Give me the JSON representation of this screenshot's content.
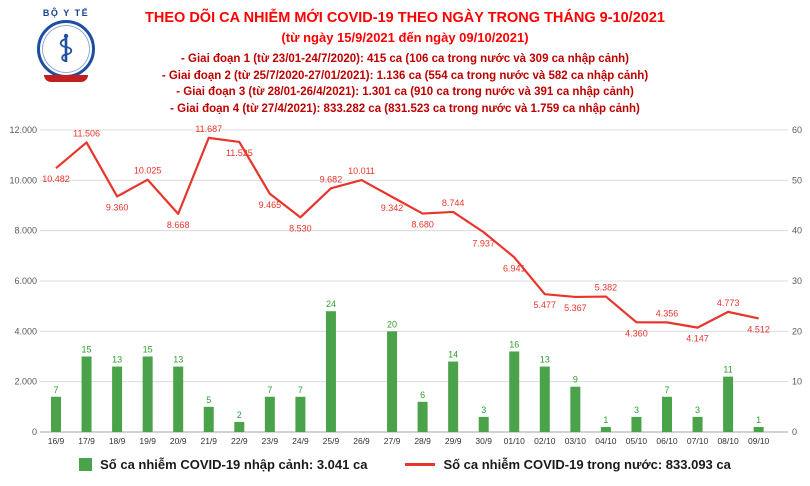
{
  "header": {
    "logo": {
      "org": "BỘ Y TẾ"
    }
  },
  "colors": {
    "title": "#ff0000",
    "annotation": "#c00000",
    "bar": "#4aa34a",
    "bar_label": "#2f9e2f",
    "line": "#e8352b",
    "line_label": "#e8352b",
    "axis_text": "#595959",
    "date_text": "#333333",
    "grid": "#dcdcdc",
    "baseline": "#a6a6a6",
    "logo_blue": "#1d4ea0"
  },
  "chart_data": {
    "type": "combo-bar-line",
    "title": "THEO DÕI CA NHIỄM MỚI COVID-19 THEO NGÀY TRONG THÁNG 9-10/2021",
    "subtitle": "(từ ngày 15/9/2021 đến ngày 09/10/2021)",
    "annotations": [
      "- Giai đoạn 1 (từ 23/01-24/7/2020): 415 ca (106 ca trong nước và 309 ca nhập cảnh)",
      "- Giai đoạn 2 (từ 25/7/2020-27/01/2021): 1.136 ca (554 ca trong nước và 582 ca nhập cảnh)",
      "- Giai đoạn 3 (từ 28/01-26/4/2021): 1.301 ca (910 ca trong nước và 391 ca nhập cảnh)",
      "- Giai đoạn 4 (từ 27/4/2021): 833.282 ca (831.523 ca trong nước và 1.759 ca nhập cảnh)"
    ],
    "categories": [
      "16/9",
      "17/9",
      "18/9",
      "19/9",
      "20/9",
      "21/9",
      "22/9",
      "23/9",
      "24/9",
      "25/9",
      "26/9",
      "27/9",
      "28/9",
      "29/9",
      "30/9",
      "01/10",
      "02/10",
      "03/10",
      "04/10",
      "05/10",
      "06/10",
      "07/10",
      "08/10",
      "09/10"
    ],
    "series": [
      {
        "name": "Số ca nhiễm COVID-19 nhập cảnh",
        "type": "bar",
        "axis": "right",
        "color": "#4aa34a",
        "values": [
          7,
          15,
          13,
          15,
          13,
          5,
          2,
          7,
          7,
          24,
          0,
          20,
          6,
          14,
          3,
          16,
          13,
          9,
          1,
          3,
          7,
          3,
          11,
          1
        ]
      },
      {
        "name": "Số ca nhiễm COVID-19 trong nước",
        "type": "line",
        "axis": "left",
        "color": "#e8352b",
        "values": [
          10482,
          11506,
          9360,
          10025,
          8668,
          11687,
          11525,
          9465,
          8530,
          9682,
          10011,
          9342,
          8680,
          8744,
          7937,
          6941,
          5477,
          5367,
          5382,
          4360,
          4356,
          4147,
          4773,
          4512
        ]
      }
    ],
    "left_axis": {
      "min": 0,
      "max": 12000,
      "step": 2000,
      "labels": [
        "0",
        "2.000",
        "4.000",
        "6.000",
        "8.000",
        "10.000",
        "12.000"
      ]
    },
    "right_axis": {
      "min": 0,
      "max": 60,
      "step": 10,
      "labels": [
        "0",
        "10",
        "20",
        "30",
        "40",
        "50",
        "60"
      ]
    },
    "grid": true,
    "legend_position": "bottom",
    "legend": [
      "Số ca nhiễm COVID-19 nhập cảnh: 3.041 ca",
      "Số ca nhiễm COVID-19 trong nước: 833.093 ca"
    ]
  }
}
